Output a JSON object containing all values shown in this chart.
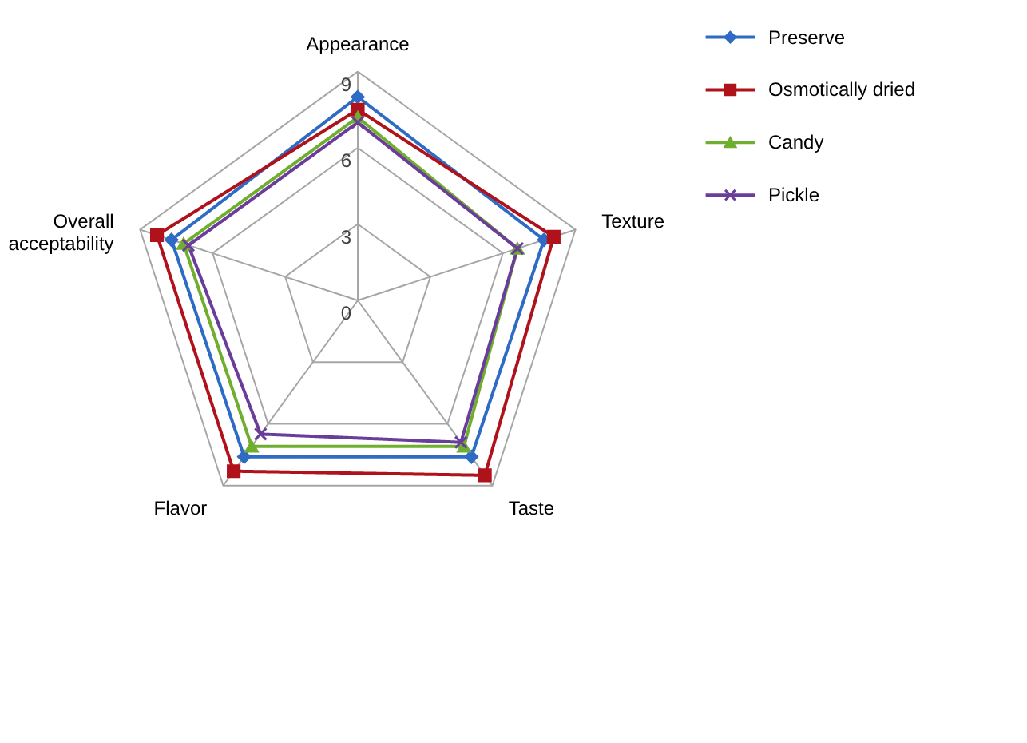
{
  "chart_data": {
    "type": "radar",
    "categories": [
      "Appearance",
      "Texture",
      "Taste",
      "Flavor",
      "Overall acceptability"
    ],
    "ylim": [
      0,
      9
    ],
    "yticks": [
      0,
      3,
      6,
      9
    ],
    "grid": true,
    "legend": "top right",
    "line_style": "solid",
    "series": [
      {
        "name": "Preserve",
        "color": "#2e6bc4",
        "marker": "diamond",
        "values": [
          8.0,
          7.7,
          7.6,
          7.6,
          7.7
        ]
      },
      {
        "name": "Osmotically dried",
        "color": "#b0121b",
        "marker": "square",
        "values": [
          7.5,
          8.1,
          8.5,
          8.3,
          8.3
        ]
      },
      {
        "name": "Candy",
        "color": "#6fae2e",
        "marker": "triangle",
        "values": [
          7.2,
          6.6,
          7.1,
          7.1,
          7.2
        ]
      },
      {
        "name": "Pickle",
        "color": "#6a3d9a",
        "marker": "cross",
        "values": [
          7.0,
          6.6,
          6.9,
          6.5,
          7.0
        ]
      }
    ]
  }
}
